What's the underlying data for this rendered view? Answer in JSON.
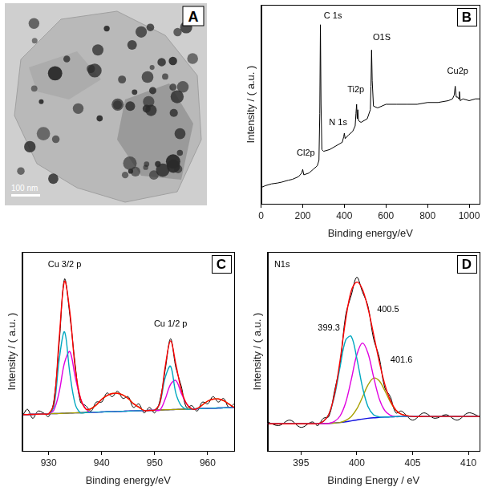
{
  "image": {
    "title": "A",
    "scale_bar": "100 nm"
  },
  "chart_data": [
    {
      "type": "line",
      "title": "B",
      "x_label": "Binding energy/eV",
      "y_label": "Intensity / ( a.u. )",
      "x": [
        0,
        20,
        50,
        80,
        100,
        130,
        150,
        180,
        195,
        200,
        205,
        230,
        250,
        270,
        278,
        282,
        285,
        288,
        292,
        300,
        330,
        360,
        390,
        397,
        400,
        404,
        420,
        440,
        452,
        456,
        459,
        462,
        465,
        468,
        480,
        510,
        525,
        528,
        531,
        534,
        540,
        560,
        600,
        650,
        700,
        750,
        800,
        850,
        900,
        920,
        928,
        933,
        938,
        945,
        950,
        953,
        957,
        970,
        1000,
        1030,
        1050
      ],
      "values": [
        9,
        10,
        11,
        11.5,
        12,
        13,
        13.5,
        15,
        17,
        19,
        16,
        17,
        19,
        21,
        24,
        50,
        99,
        55,
        30,
        29,
        30,
        32,
        34,
        37,
        39,
        36,
        38,
        40,
        43,
        50,
        55,
        47,
        52,
        46,
        45,
        47,
        52,
        65,
        85,
        68,
        54,
        53,
        55,
        55,
        55,
        55,
        56,
        56,
        57,
        58,
        60,
        65,
        59,
        59,
        58,
        62,
        57,
        58,
        57,
        58,
        58
      ],
      "color": "#000000",
      "xlim": [
        0,
        1050
      ],
      "xticks": [
        0,
        200,
        400,
        600,
        800,
        1000
      ],
      "ylim": [
        0,
        110
      ],
      "grid": false,
      "tick_labels": "x",
      "annotations": [
        {
          "text": "C 1s",
          "x": 345,
          "y": 104
        },
        {
          "text": "O1S",
          "x": 580,
          "y": 92
        },
        {
          "text": "Ti2p",
          "x": 455,
          "y": 63
        },
        {
          "text": "N 1s",
          "x": 370,
          "y": 45
        },
        {
          "text": "Cl2p",
          "x": 215,
          "y": 28
        },
        {
          "text": "Cu2p",
          "x": 945,
          "y": 73
        }
      ]
    },
    {
      "type": "line",
      "title": "C",
      "x_label": "Binding energy/eV",
      "y_label": "Intensity / ( a.u. )",
      "x": [
        925,
        926,
        927,
        928,
        929,
        930,
        931,
        932,
        933,
        934,
        935,
        936,
        937,
        938,
        939,
        940,
        941,
        942,
        943,
        944,
        945,
        946,
        947,
        948,
        949,
        950,
        951,
        952,
        953,
        954,
        955,
        956,
        957,
        958,
        959,
        960,
        961,
        962,
        963,
        964,
        965
      ],
      "series": [
        {
          "color": "#000000",
          "values": [
            19,
            23,
            18,
            22,
            21,
            19,
            28,
            60,
            95,
            75,
            48,
            27,
            25,
            22,
            27,
            27,
            32,
            30,
            33,
            29,
            30,
            24,
            26,
            21,
            24,
            21,
            28,
            45,
            62,
            46,
            36,
            24,
            25,
            22,
            27,
            26,
            30,
            27,
            29,
            24,
            26
          ]
        },
        {
          "color": "#ff0000",
          "values": [
            20,
            20.1,
            20.2,
            20.3,
            20.4,
            20.5,
            26.6,
            62.7,
            93.8,
            76.9,
            46,
            29.1,
            23.2,
            23.3,
            25.4,
            28.5,
            30.6,
            31.7,
            31.8,
            30.9,
            29,
            26.1,
            24.2,
            22.3,
            22.4,
            22.5,
            26.6,
            46.7,
            60.8,
            47.9,
            34,
            26.1,
            23.2,
            23.3,
            25.4,
            27.5,
            28.6,
            28.7,
            27.8,
            25.9,
            24
          ]
        },
        {
          "color": "#00a8c0",
          "values": [
            20,
            20.1,
            20.2,
            20.3,
            20.4,
            20.5,
            24.6,
            50.7,
            65.8,
            42.9,
            26,
            21.1,
            21.2,
            21.3,
            21.4,
            21.5,
            21.6,
            21.7,
            21.8,
            21.9,
            22,
            22.1,
            22.2,
            22.3,
            22.4,
            22.5,
            26.6,
            40.7,
            46.8,
            31.9,
            25,
            23.1,
            23.2,
            23.3,
            23.4,
            23.5,
            23.6,
            23.7,
            23.8,
            23.9,
            24
          ]
        },
        {
          "color": "#e000e0",
          "values": [
            20,
            20.1,
            20.2,
            20.3,
            20.4,
            20.5,
            22.6,
            32.7,
            48.8,
            54.9,
            41,
            29.1,
            23.2,
            21.3,
            21.4,
            21.5,
            21.6,
            21.7,
            21.8,
            21.9,
            22,
            22.1,
            22.2,
            22.3,
            22.4,
            22.5,
            22.6,
            28.7,
            36.8,
            38.9,
            32,
            26.1,
            23.2,
            23.3,
            23.4,
            23.5,
            23.6,
            23.7,
            23.8,
            23.9,
            24
          ]
        },
        {
          "color": "#a8a000",
          "values": [
            20,
            20.1,
            20.2,
            20.3,
            20.4,
            20.5,
            20.6,
            20.7,
            20.8,
            20.9,
            21,
            21.1,
            21.2,
            23.3,
            25.4,
            28.5,
            30.6,
            31.7,
            31.8,
            30.9,
            29,
            26.1,
            24.2,
            22.3,
            22.4,
            22.5,
            22.6,
            22.7,
            22.8,
            22.9,
            23,
            23.1,
            23.2,
            23.3,
            25.4,
            27.5,
            28.6,
            28.7,
            27.8,
            25.9,
            24
          ]
        },
        {
          "color": "#1010e0",
          "values": [
            20,
            20.1,
            20.2,
            20.3,
            20.4,
            20.5,
            20.6,
            20.7,
            20.8,
            20.9,
            21,
            21.1,
            21.2,
            21.3,
            21.4,
            21.5,
            21.6,
            21.7,
            21.8,
            21.9,
            22,
            22.1,
            22.2,
            22.3,
            22.4,
            22.5,
            22.6,
            22.7,
            22.8,
            22.9,
            23,
            23.1,
            23.2,
            23.3,
            23.4,
            23.5,
            23.6,
            23.7,
            23.8,
            23.9,
            24
          ]
        }
      ],
      "xlim": [
        925,
        965
      ],
      "xticks": [
        930,
        940,
        950,
        960
      ],
      "ylim": [
        0,
        110
      ],
      "grid": false,
      "tick_labels": "x",
      "annotations": [
        {
          "text": "Cu 3/2 p",
          "x": 933,
          "y": 103
        },
        {
          "text": "Cu 1/2 p",
          "x": 953,
          "y": 70
        }
      ]
    },
    {
      "type": "line",
      "title": "D",
      "x_label": "Binding Energy / eV",
      "y_label": "Intensity / ( a.u. )",
      "x": [
        392,
        393,
        394,
        395,
        396,
        396.5,
        397,
        397.5,
        398,
        398.5,
        399,
        399.5,
        400,
        400.5,
        401,
        401.5,
        402,
        402.5,
        403,
        403.5,
        404,
        405,
        406,
        407,
        408,
        409,
        410,
        411
      ],
      "series": [
        {
          "color": "#000000",
          "values": [
            16,
            14,
            17,
            13,
            16,
            14,
            18,
            19,
            33,
            48,
            75,
            86,
            96,
            88,
            80,
            62,
            52,
            35,
            30,
            21,
            22,
            17,
            21,
            18,
            20,
            17,
            21,
            19
          ]
        },
        {
          "color": "#ff0000",
          "values": [
            15,
            15,
            15,
            15,
            15,
            15,
            16.3,
            20.3,
            31.2,
            50,
            72.4,
            88.4,
            93.3,
            89.4,
            78.9,
            64.6,
            49.6,
            37,
            28,
            22.5,
            20.2,
            19,
            19,
            19,
            19,
            19,
            19,
            19
          ]
        },
        {
          "color": "#00a8c0",
          "values": [
            15,
            15,
            15,
            15,
            15,
            15,
            16.3,
            20.3,
            30.3,
            46.4,
            61.2,
            63.3,
            51.2,
            35.4,
            24.5,
            20,
            18.8,
            18.7,
            18.8,
            18.9,
            19,
            19,
            19,
            19,
            19,
            19,
            19,
            19
          ]
        },
        {
          "color": "#e000e0",
          "values": [
            15,
            15,
            15,
            15,
            15,
            15,
            15.1,
            15.2,
            16.3,
            19.3,
            26.6,
            39.3,
            53.1,
            59.6,
            54,
            41,
            29,
            22.3,
            19.7,
            18.9,
            19,
            19,
            19,
            19,
            19,
            19,
            19,
            19
          ]
        },
        {
          "color": "#a8a000",
          "values": [
            15,
            15,
            15,
            15,
            15,
            15,
            15.1,
            15.2,
            15.4,
            15.7,
            16.8,
            19,
            23.2,
            29.6,
            36.4,
            40.2,
            38.8,
            33.4,
            27.1,
            22.5,
            20.2,
            19,
            19,
            19,
            19,
            19,
            19,
            19
          ]
        },
        {
          "color": "#1010e0",
          "values": [
            15,
            15,
            15,
            15,
            15,
            15,
            15.1,
            15.2,
            15.4,
            15.7,
            16.1,
            16.6,
            17.1,
            17.6,
            18,
            18.3,
            18.5,
            18.7,
            18.8,
            18.9,
            19,
            19,
            19,
            19,
            19,
            19,
            19,
            19
          ]
        }
      ],
      "xlim": [
        392,
        411
      ],
      "xticks": [
        395,
        400,
        405,
        410
      ],
      "ylim": [
        0,
        110
      ],
      "grid": false,
      "tick_labels": "x",
      "annotations": [
        {
          "text": "N1s",
          "x": 393.3,
          "y": 103
        },
        {
          "text": "399.3",
          "x": 397.5,
          "y": 68
        },
        {
          "text": "400.5",
          "x": 402.8,
          "y": 78
        },
        {
          "text": "401.6",
          "x": 404,
          "y": 50
        }
      ]
    }
  ]
}
